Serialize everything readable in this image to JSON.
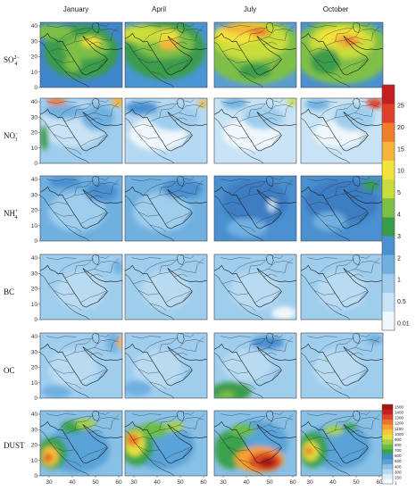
{
  "chart_data": {
    "type": "heatmap",
    "columns": [
      "January",
      "April",
      "July",
      "October"
    ],
    "rows": [
      {
        "label_main": "SO",
        "label_sub": "4",
        "label_sup": "2−",
        "label_tail": ""
      },
      {
        "label_main": "NO",
        "label_sub": "3",
        "label_sup": "−",
        "label_tail": ""
      },
      {
        "label_main": "NH",
        "label_sub": "4",
        "label_sup": "+",
        "label_tail": ""
      },
      {
        "label_main": "BC",
        "label_sub": "",
        "label_sup": "",
        "label_tail": ""
      },
      {
        "label_main": "OC",
        "label_sub": "",
        "label_sup": "",
        "label_tail": ""
      },
      {
        "label_main": "DUST",
        "label_sub": "",
        "label_sup": "",
        "label_tail": ""
      }
    ],
    "y_ticks": [
      "40",
      "30",
      "20",
      "10",
      "0"
    ],
    "x_ticks": [
      "30",
      "40",
      "50",
      "60"
    ],
    "colorbar_main": {
      "ticks": [
        "25",
        "20",
        "15",
        "10",
        "5",
        "4",
        "3",
        "2",
        "1",
        "0.5",
        "0.01"
      ],
      "colors": [
        "#f0f8fd",
        "#c7e3f5",
        "#9ecdee",
        "#6fb0e0",
        "#4a90d0",
        "#3a9c4b",
        "#7ec047",
        "#c9dd3a",
        "#f3e33a",
        "#f5b43a",
        "#ef7e2a",
        "#e0402a",
        "#c41e20"
      ]
    },
    "colorbar_dust": {
      "ticks": [
        "1500",
        "1400",
        "1300",
        "1200",
        "1100",
        "1000",
        "900",
        "800",
        "700",
        "600",
        "500",
        "400",
        "300",
        "150",
        "1"
      ],
      "colors": [
        "#ffffff",
        "#dcecf8",
        "#b5d8f0",
        "#88c0e6",
        "#5aa3d8",
        "#3c8dd0",
        "#3aa24e",
        "#6bbd44",
        "#a6d245",
        "#e4e33e",
        "#f7c43a",
        "#f5a030",
        "#ef742b",
        "#e04427",
        "#c81f1f",
        "#a21616"
      ]
    }
  }
}
